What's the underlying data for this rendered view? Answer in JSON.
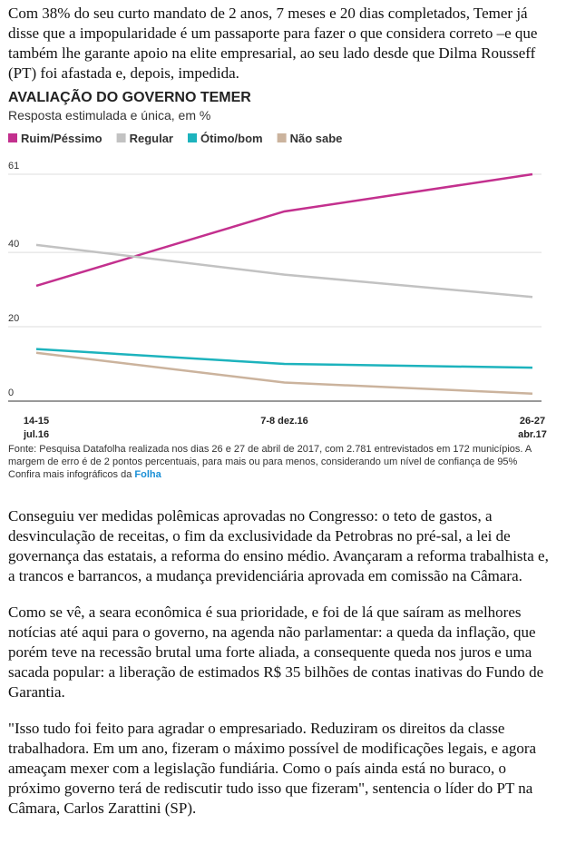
{
  "paragraphs": [
    "Com 38% do seu curto mandato de 2 anos, 7 meses e 20 dias completados, Temer já disse que a impopularidade é um passaporte para fazer o que considera correto –e que também lhe garante apoio na elite empresarial, ao seu lado desde que Dilma Rousseff (PT) foi afastada e, depois, impedida.",
    "Conseguiu ver medidas polêmicas aprovadas no Congresso: o teto de gastos, a desvinculação de receitas, o fim da exclusividade da Petrobras no pré-sal, a lei de governança das estatais, a reforma do ensino médio. Avançaram a reforma trabalhista e, a trancos e barrancos, a mudança previdenciária aprovada em comissão na Câmara.",
    "Como se vê, a seara econômica é sua prioridade, e foi de lá que saíram as melhores notícias até aqui para o governo, na agenda não parlamentar: a queda da inflação, que porém teve na recessão brutal uma forte aliada, a consequente queda nos juros e uma sacada popular: a liberação de estimados R$ 35 bilhões de contas inativas do Fundo de Garantia.",
    "\"Isso tudo foi feito para agradar o empresariado. Reduziram os direitos da classe trabalhadora. Em um ano, fizeram o máximo possível de modificações legais, e agora ameaçam mexer com a legislação fundiária. Como o país ainda está no buraco, o próximo governo terá de rediscutir tudo isso que fizeram\", sentencia o líder do PT na Câmara, Carlos Zarattini (SP)."
  ],
  "chart_data": {
    "type": "line",
    "title": "AVALIAÇÃO DO GOVERNO TEMER",
    "subtitle": "Resposta estimulada e única, em %",
    "categories": [
      "14-15\njul.16",
      "7-8 dez.16",
      "26-27\nabr.17"
    ],
    "series": [
      {
        "name": "Ruim/Péssimo",
        "color": "#c3308e",
        "values": [
          31,
          51,
          61
        ]
      },
      {
        "name": "Regular",
        "color": "#c2c2c2",
        "values": [
          42,
          34,
          28
        ]
      },
      {
        "name": "Ótimo/bom",
        "color": "#1db3bd",
        "values": [
          14,
          10,
          9
        ]
      },
      {
        "name": "Não sabe",
        "color": "#cbb39d",
        "values": [
          13,
          5,
          2
        ]
      }
    ],
    "ylim": [
      0,
      61
    ],
    "yticks": [
      0,
      20,
      40,
      61
    ],
    "grid": true,
    "source": "Fonte: Pesquisa Datafolha realizada nos dias 26 e 27 de abril de 2017, com 2.781 entrevistados em 172 municípios. A margem de erro é de 2 pontos percentuais, para mais ou para menos, considerando um nível de confiança de 95%",
    "credit": "Confira mais infográficos da",
    "credit_link": "Folha"
  }
}
